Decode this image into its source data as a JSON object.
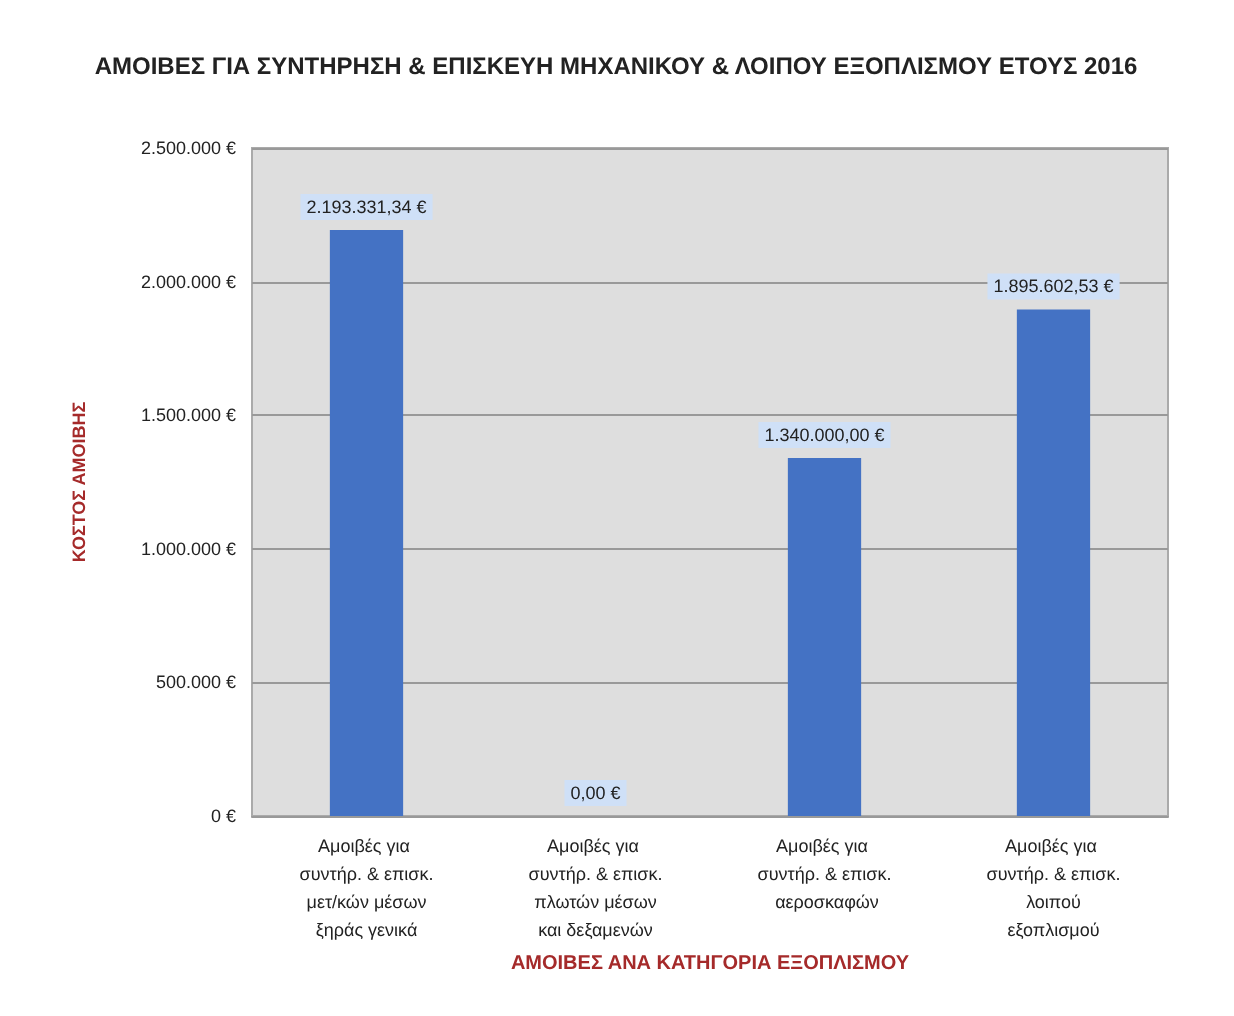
{
  "chart_data": {
    "type": "bar",
    "title": "ΑΜΟΙΒΕΣ ΓΙΑ ΣΥΝΤΗΡΗΣΗ & ΕΠΙΣΚΕΥΗ ΜΗΧΑΝΙΚΟΥ & ΛΟΙΠΟΥ ΕΞΟΠΛΙΣΜΟΥ ΕΤΟΥΣ 2016",
    "xlabel": "ΑΜΟΙΒΕΣ ΑΝΑ ΚΑΤΗΓΟΡΙΑ ΕΞΟΠΛΙΣΜΟΥ",
    "ylabel": "ΚΟΣΤΟΣ ΑΜΟΙΒΗΣ",
    "categories": [
      "Αμοιβές για συντήρ. & επισκ. μετ/κών μέσων ξηράς γενικά",
      "Αμοιβές για συντήρ. & επισκ. πλωτών μέσων και δεξαμενών",
      "Αμοιβές για συντήρ. & επισκ. αεροσκαφών",
      "Αμοιβές για συντήρ. & επισκ. λοιπού εξοπλισμού"
    ],
    "values": [
      2193331.34,
      0,
      1340000,
      1895602.53
    ],
    "value_labels": [
      "2.193.331,34 €",
      "0,00 €",
      "1.340.000,00 €",
      "1.895.602,53 €"
    ],
    "color": "#4472c4",
    "ylim": [
      0,
      2500000
    ],
    "yticks": [
      {
        "value": 0,
        "label": "0 €"
      },
      {
        "value": 500000,
        "label": "500.000 €"
      },
      {
        "value": 1000000,
        "label": "1.000.000 €"
      },
      {
        "value": 1500000,
        "label": "1.500.000 €"
      },
      {
        "value": 2000000,
        "label": "2.000.000 €"
      },
      {
        "value": 2500000,
        "label": "2.500.000 €"
      }
    ],
    "grid": "y"
  }
}
